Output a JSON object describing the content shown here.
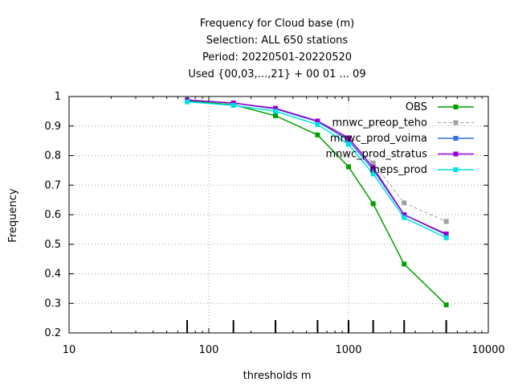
{
  "chart_data": {
    "type": "line",
    "title_lines": [
      "Frequency  for Cloud base (m)",
      "Selection: ALL    650 stations",
      "Period: 20220501-20220520",
      "Used {00,03,...,21} + 00 01 ... 09"
    ],
    "xlabel": "thresholds m",
    "ylabel": "Frequency",
    "x_scale": "log",
    "xlim": [
      10,
      10000
    ],
    "ylim": [
      0.2,
      1
    ],
    "x_ticks": [
      10,
      100,
      1000,
      10000
    ],
    "x_tick_labels": [
      "10",
      "100",
      "1000",
      "10000"
    ],
    "y_ticks": [
      0.2,
      0.3,
      0.4,
      0.5,
      0.6,
      0.7,
      0.8,
      0.9,
      1
    ],
    "y_tick_labels": [
      "0.2",
      "0.3",
      "0.4",
      "0.5",
      "0.6",
      "0.7",
      "0.8",
      "0.9",
      "1"
    ],
    "grid": true,
    "legend_position": "top-right",
    "threshold_marks": [
      70,
      150,
      300,
      600,
      1000,
      1500,
      2500,
      5000
    ],
    "x": [
      70,
      150,
      300,
      600,
      1000,
      1500,
      2500,
      5000
    ],
    "series": [
      {
        "name": "OBS",
        "color": "#00a000",
        "dash": "solid",
        "marker": "square",
        "values": [
          0.985,
          0.972,
          0.935,
          0.87,
          0.762,
          0.637,
          0.433,
          0.295
        ]
      },
      {
        "name": "mnwc_preop_teho",
        "color": "#a0a0a0",
        "dash": "dashed",
        "marker": "square",
        "values": [
          0.988,
          0.978,
          0.96,
          0.915,
          0.855,
          0.775,
          0.64,
          0.577
        ]
      },
      {
        "name": "mnwc_prod_voima",
        "color": "#3070e0",
        "dash": "solid",
        "marker": "square",
        "values": [
          0.988,
          0.978,
          0.958,
          0.915,
          0.852,
          0.752,
          0.6,
          0.532
        ]
      },
      {
        "name": "mnwc_prod_stratus",
        "color": "#9400d3",
        "dash": "solid",
        "marker": "square",
        "values": [
          0.988,
          0.978,
          0.96,
          0.917,
          0.86,
          0.76,
          0.6,
          0.535
        ]
      },
      {
        "name": "meps_prod",
        "color": "#00e0e8",
        "dash": "solid",
        "marker": "square",
        "values": [
          0.982,
          0.97,
          0.95,
          0.905,
          0.838,
          0.738,
          0.59,
          0.522
        ]
      }
    ]
  }
}
